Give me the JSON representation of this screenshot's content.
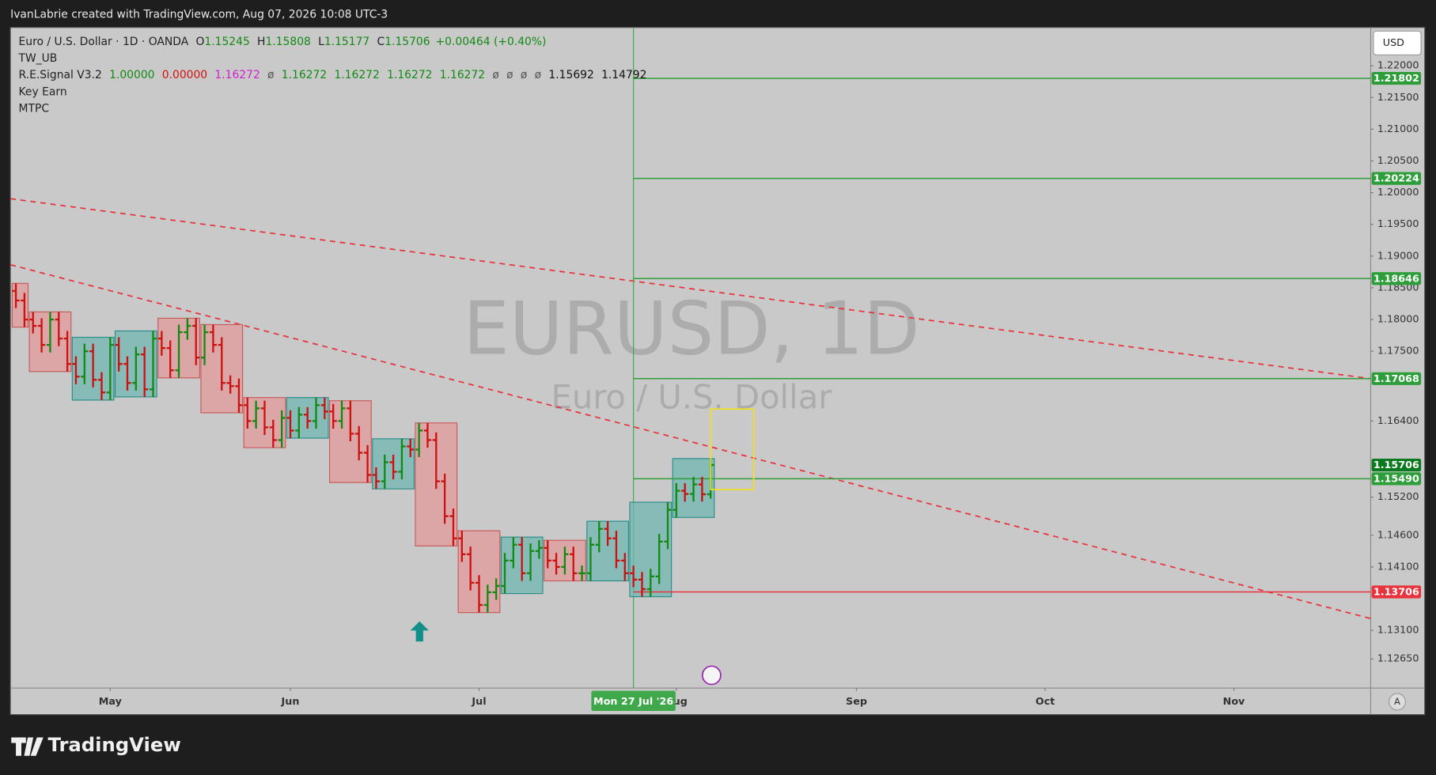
{
  "top_bar": {
    "text": "IvanLabrie created with TradingView.com, Aug 07, 2026 10:08 UTC-3"
  },
  "legend": {
    "symbol": "Euro / U.S. Dollar · 1D · OANDA",
    "ohlc": [
      {
        "label": "O",
        "value": 1.15245
      },
      {
        "label": "H",
        "value": 1.15808
      },
      {
        "label": "L",
        "value": 1.15177
      },
      {
        "label": "C",
        "value": 1.15706
      }
    ],
    "change": "+0.00464 (+0.40%)",
    "indicators": [
      {
        "name": "TW_UB"
      },
      {
        "name": "R.E.Signal V3.2",
        "values": [
          {
            "text": "1.00000",
            "color": "#138a13"
          },
          {
            "text": "0.00000",
            "color": "#d01010"
          },
          {
            "text": "1.16272",
            "color": "#d020d0"
          },
          {
            "text": "ø",
            "color": "#555555"
          },
          {
            "text": "1.16272",
            "color": "#138a13"
          },
          {
            "text": "1.16272",
            "color": "#138a13"
          },
          {
            "text": "1.16272",
            "color": "#138a13"
          },
          {
            "text": "1.16272",
            "color": "#138a13"
          },
          {
            "text": "ø",
            "color": "#555555"
          },
          {
            "text": "ø",
            "color": "#555555"
          },
          {
            "text": "ø",
            "color": "#555555"
          },
          {
            "text": "ø",
            "color": "#555555"
          },
          {
            "text": "1.15692",
            "color": "#111111"
          },
          {
            "text": "1.14792",
            "color": "#111111"
          }
        ]
      },
      {
        "name": "Key Earn"
      },
      {
        "name": "MTPC"
      }
    ]
  },
  "watermark": {
    "title": "EURUSD, 1D",
    "subtitle": "Euro / U.S. Dollar"
  },
  "currency_button": "USD",
  "auto_button": "A",
  "brand": "TradingView",
  "chart_data": {
    "type": "ohlc",
    "up_color": "#138a13",
    "down_color": "#cc1111",
    "open": [
      1.1845,
      1.183,
      1.18,
      1.179,
      1.176,
      1.18,
      1.177,
      1.173,
      1.171,
      1.175,
      1.1705,
      1.1685,
      1.176,
      1.173,
      1.17,
      1.1745,
      1.169,
      1.177,
      1.1755,
      1.172,
      1.178,
      1.179,
      1.174,
      1.178,
      1.176,
      1.17,
      1.1695,
      1.1665,
      1.164,
      1.166,
      1.163,
      1.161,
      1.1645,
      1.1625,
      1.165,
      1.164,
      1.1665,
      1.1655,
      1.164,
      1.166,
      1.162,
      1.159,
      1.1555,
      1.1545,
      1.1575,
      1.156,
      1.16,
      1.1595,
      1.1625,
      1.161,
      1.1545,
      1.149,
      1.1455,
      1.143,
      1.1385,
      1.135,
      1.137,
      1.138,
      1.142,
      1.1445,
      1.14,
      1.1435,
      1.144,
      1.142,
      1.141,
      1.143,
      1.14,
      1.14,
      1.1445,
      1.147,
      1.1455,
      1.142,
      1.14,
      1.139,
      1.1375,
      1.1395,
      1.145,
      1.15,
      1.153,
      1.1525,
      1.154,
      1.15245
    ],
    "high": [
      1.1857,
      1.1842,
      1.1812,
      1.1802,
      1.1812,
      1.1812,
      1.1782,
      1.1742,
      1.1762,
      1.1762,
      1.1717,
      1.1772,
      1.1772,
      1.1742,
      1.1757,
      1.1757,
      1.1782,
      1.1782,
      1.1767,
      1.1792,
      1.1802,
      1.1802,
      1.1792,
      1.1792,
      1.1772,
      1.1712,
      1.1707,
      1.1677,
      1.1672,
      1.1672,
      1.1642,
      1.1657,
      1.1657,
      1.1662,
      1.1662,
      1.1677,
      1.1677,
      1.1667,
      1.1672,
      1.1672,
      1.1632,
      1.1602,
      1.1567,
      1.1587,
      1.1587,
      1.1612,
      1.1612,
      1.1637,
      1.1637,
      1.1622,
      1.1557,
      1.1502,
      1.1467,
      1.1442,
      1.1397,
      1.1382,
      1.1392,
      1.1432,
      1.1457,
      1.1457,
      1.1447,
      1.1452,
      1.1452,
      1.1432,
      1.1442,
      1.1442,
      1.1412,
      1.1457,
      1.1482,
      1.1482,
      1.1467,
      1.1432,
      1.1412,
      1.1402,
      1.1407,
      1.1462,
      1.1512,
      1.1542,
      1.1542,
      1.1552,
      1.1552,
      1.15808
    ],
    "low": [
      1.1818,
      1.1788,
      1.1778,
      1.1748,
      1.1748,
      1.1758,
      1.1718,
      1.1698,
      1.1698,
      1.1693,
      1.1673,
      1.1673,
      1.1718,
      1.1688,
      1.1688,
      1.1678,
      1.1678,
      1.1743,
      1.1708,
      1.1708,
      1.1768,
      1.1728,
      1.1728,
      1.1748,
      1.1688,
      1.1683,
      1.1653,
      1.1628,
      1.1628,
      1.1618,
      1.1598,
      1.1598,
      1.1613,
      1.1613,
      1.1628,
      1.1628,
      1.1643,
      1.1628,
      1.1628,
      1.1608,
      1.1578,
      1.1543,
      1.1533,
      1.1533,
      1.1548,
      1.1548,
      1.1583,
      1.1583,
      1.1598,
      1.1533,
      1.1478,
      1.1443,
      1.1418,
      1.1373,
      1.1338,
      1.1338,
      1.1358,
      1.1368,
      1.1408,
      1.1388,
      1.1388,
      1.1423,
      1.1408,
      1.1398,
      1.1398,
      1.1388,
      1.1388,
      1.1388,
      1.1433,
      1.1443,
      1.1408,
      1.1388,
      1.1378,
      1.1363,
      1.1363,
      1.1383,
      1.1438,
      1.1488,
      1.1513,
      1.1513,
      1.1513,
      1.15177
    ],
    "close": [
      1.183,
      1.18,
      1.179,
      1.176,
      1.18,
      1.177,
      1.173,
      1.171,
      1.175,
      1.1705,
      1.1685,
      1.176,
      1.173,
      1.17,
      1.1745,
      1.169,
      1.177,
      1.1755,
      1.172,
      1.178,
      1.179,
      1.174,
      1.178,
      1.176,
      1.17,
      1.1695,
      1.1665,
      1.164,
      1.166,
      1.163,
      1.161,
      1.1645,
      1.1625,
      1.165,
      1.164,
      1.1665,
      1.1655,
      1.164,
      1.166,
      1.162,
      1.159,
      1.1555,
      1.1545,
      1.1575,
      1.156,
      1.16,
      1.1595,
      1.1625,
      1.161,
      1.1545,
      1.149,
      1.1455,
      1.143,
      1.1385,
      1.135,
      1.137,
      1.138,
      1.142,
      1.1445,
      1.14,
      1.1435,
      1.144,
      1.142,
      1.141,
      1.143,
      1.14,
      1.14,
      1.1445,
      1.147,
      1.1455,
      1.142,
      1.14,
      1.139,
      1.1375,
      1.1395,
      1.145,
      1.15,
      1.153,
      1.1525,
      1.154,
      1.15245,
      1.15706
    ],
    "ylim": [
      1.1219,
      1.2259
    ],
    "yticks": [
      {
        "value": 1.22,
        "label": "1.22000"
      },
      {
        "value": 1.215,
        "label": "1.21500"
      },
      {
        "value": 1.21,
        "label": "1.21000"
      },
      {
        "value": 1.205,
        "label": "1.20500"
      },
      {
        "value": 1.2,
        "label": "1.20000"
      },
      {
        "value": 1.195,
        "label": "1.19500"
      },
      {
        "value": 1.19,
        "label": "1.19000"
      },
      {
        "value": 1.185,
        "label": "1.18500"
      },
      {
        "value": 1.18,
        "label": "1.18000"
      },
      {
        "value": 1.175,
        "label": "1.17500"
      },
      {
        "value": 1.164,
        "label": "1.16400"
      },
      {
        "value": 1.152,
        "label": "1.15200"
      },
      {
        "value": 1.146,
        "label": "1.14600"
      },
      {
        "value": 1.141,
        "label": "1.14100"
      },
      {
        "value": 1.131,
        "label": "1.13100"
      },
      {
        "value": 1.1265,
        "label": "1.12650"
      }
    ],
    "xticks": [
      {
        "value": 11,
        "label": "May"
      },
      {
        "value": 32,
        "label": "Jun"
      },
      {
        "value": 54,
        "label": "Jul"
      },
      {
        "value": 77,
        "label": "Aug"
      },
      {
        "value": 98,
        "label": "Sep"
      },
      {
        "value": 120,
        "label": "Oct"
      },
      {
        "value": 142,
        "label": "Nov"
      }
    ],
    "crosshair": {
      "value": 72,
      "label": "Mon 27 Jul '26",
      "color": "#3ea84a"
    },
    "levels": [
      {
        "value": 1.21802,
        "color": "#2e9e3a"
      },
      {
        "value": 1.20224,
        "color": "#2e9e3a"
      },
      {
        "value": 1.18646,
        "color": "#2e9e3a"
      },
      {
        "value": 1.17068,
        "color": "#2e9e3a"
      },
      {
        "value": {
          "value": 1.1549,
          "label": "1.15490"
        },
        "color": "#2e9e3a"
      },
      {
        "value": 1.13706,
        "color": "#e8323c"
      }
    ],
    "last_price": {
      "value": 1.15706,
      "color": "#0b7a1e"
    },
    "trendlines": [
      {
        "from": 1.19905,
        "to": 1.17068,
        "color": "#e8323c"
      },
      {
        "from": 1.18864,
        "to": 1.13286,
        "color": "#e8323c"
      }
    ]
  }
}
